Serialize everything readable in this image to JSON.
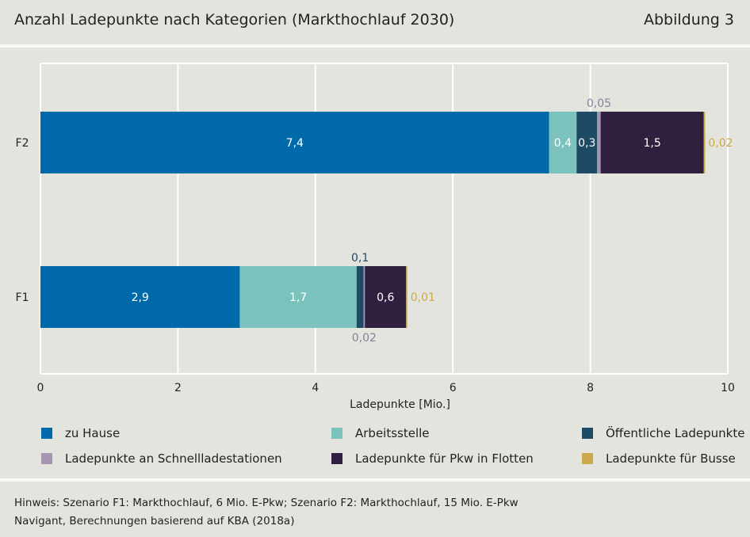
{
  "header": {
    "title": "Anzahl Ladepunkte nach Kategorien (Markthochlauf 2030)",
    "figure_label": "Abbildung 3"
  },
  "chart_data": {
    "type": "bar",
    "orientation": "horizontal",
    "stacked": true,
    "categories": [
      "F2",
      "F1"
    ],
    "series": [
      {
        "name": "zu Hause",
        "color": "#0069aa",
        "values": [
          7.4,
          2.9
        ],
        "labels": [
          "7,4",
          "2,9"
        ]
      },
      {
        "name": "Arbeitsstelle",
        "color": "#7cc2bc",
        "values": [
          0.4,
          1.7
        ],
        "labels": [
          "0,4",
          "1,7"
        ]
      },
      {
        "name": "Öffentliche Ladepunkte",
        "color": "#1f4a66",
        "values": [
          0.3,
          0.1
        ],
        "labels": [
          "0,3",
          "0,1"
        ]
      },
      {
        "name": "Ladepunkte an Schnellladestationen",
        "color": "#a894b3",
        "values": [
          0.05,
          0.02
        ],
        "labels": [
          "0,05",
          "0,02"
        ]
      },
      {
        "name": "Ladepunkte für Pkw in Flotten",
        "color": "#30203f",
        "values": [
          1.5,
          0.6
        ],
        "labels": [
          "1,5",
          "0,6"
        ]
      },
      {
        "name": "Ladepunkte für Busse",
        "color": "#c9a94a",
        "values": [
          0.02,
          0.01
        ],
        "labels": [
          "0,02",
          "0,01"
        ]
      }
    ],
    "xlabel": "Ladepunkte [Mio.]",
    "xlim": [
      0,
      10
    ],
    "xticks": [
      "0",
      "2",
      "4",
      "6",
      "8",
      "10"
    ],
    "grid": true,
    "legend_position": "bottom"
  },
  "footer": {
    "note": "Hinweis: Szenario F1: Markthochlauf, 6 Mio. E-Pkw; Szenario F2: Markthochlauf, 15 Mio. E-Pkw",
    "source": "Navigant, Berechnungen basierend auf KBA (2018a)"
  }
}
